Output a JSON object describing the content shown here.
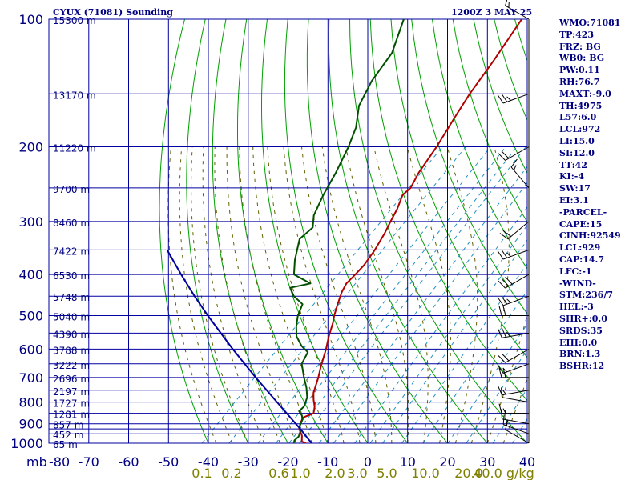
{
  "header": {
    "title": "CYUX (71081) Sounding",
    "valid_time": "1200Z  3 MAY 25"
  },
  "stats": [
    "WMO:71081",
    "TP:423",
    "FRZ: BG",
    "WB0: BG",
    "PW:0.11",
    "RH:76.7",
    "MAXT:-9.0",
    "TH:4975",
    "L57:6.0",
    "LCL:972",
    "LI:15.0",
    "SI:12.0",
    "TT:42",
    "KI:-4",
    "SW:17",
    "EI:3.1",
    "-PARCEL-",
    "CAPE:15",
    "CINH:92549",
    "LCL:929",
    "CAP:14.7",
    "LFC:-1",
    "-WIND-",
    "STM:236/7",
    "HEL:-3",
    "SHR+:0.0",
    "SRDS:35",
    "EHI:0.0",
    "BRN:1.3",
    "BSHR:12"
  ],
  "colors": {
    "grid": "#0000a0",
    "dry_adiabats": "#00a000",
    "moist_adiabats": "#606000",
    "mixing_ratio": "#2090c0",
    "temperature": "#b00000",
    "dewpoint": "#005000",
    "parcel": "#0000a0",
    "axis_text": "#000080",
    "mixing_text": "#808000"
  },
  "chart_data": {
    "type": "line",
    "chart_kind": "skew-T log-P sounding",
    "y_scale": "log",
    "xlim": [
      -80,
      40
    ],
    "ylim": [
      1000,
      100
    ],
    "x_unit_label": "mb",
    "x_ticks": [
      -80,
      -70,
      -60,
      -50,
      -40,
      -30,
      -20,
      -10,
      0,
      10,
      20,
      30,
      40
    ],
    "x_tick_labels": [
      "-80",
      "-70",
      "-60",
      "-50",
      "-40",
      "-30",
      "-20",
      "-10",
      "0",
      "10",
      "20",
      "30",
      "40"
    ],
    "y_ticks": [
      {
        "p": 100,
        "label": "100"
      },
      {
        "p": 200,
        "label": "200"
      },
      {
        "p": 300,
        "label": "300"
      },
      {
        "p": 400,
        "label": "400"
      },
      {
        "p": 500,
        "label": "500"
      },
      {
        "p": 600,
        "label": "600"
      },
      {
        "p": 700,
        "label": "700"
      },
      {
        "p": 800,
        "label": "800"
      },
      {
        "p": 900,
        "label": "900"
      },
      {
        "p": 1000,
        "label": "1000"
      }
    ],
    "pressure_grid": [
      100,
      150,
      200,
      250,
      300,
      350,
      400,
      450,
      500,
      550,
      600,
      650,
      700,
      750,
      800,
      850,
      900,
      925,
      950,
      1000
    ],
    "height_labels": [
      {
        "p": 100,
        "label": "15300 m"
      },
      {
        "p": 150,
        "label": "13170 m"
      },
      {
        "p": 200,
        "label": "11220 m"
      },
      {
        "p": 250,
        "label": "9700 m"
      },
      {
        "p": 300,
        "label": "8460 m"
      },
      {
        "p": 350,
        "label": "7422 m"
      },
      {
        "p": 400,
        "label": "6530 m"
      },
      {
        "p": 450,
        "label": "5748 m"
      },
      {
        "p": 500,
        "label": "5040 m"
      },
      {
        "p": 550,
        "label": "4390 m"
      },
      {
        "p": 600,
        "label": "3788 m"
      },
      {
        "p": 650,
        "label": "3222 m"
      },
      {
        "p": 700,
        "label": "2696 m"
      },
      {
        "p": 750,
        "label": "2197 m"
      },
      {
        "p": 800,
        "label": "1727 m"
      },
      {
        "p": 850,
        "label": "1281 m"
      },
      {
        "p": 900,
        "label": "857 m"
      },
      {
        "p": 950,
        "label": "452 m"
      },
      {
        "p": 1000,
        "label": "65 m"
      }
    ],
    "mixing_ratio_labels": [
      "0.1",
      "0.2",
      "0.6",
      "1.0",
      "2.0",
      "3.0",
      "5.0",
      "10.0",
      "20.0",
      "40.0 g/kg"
    ],
    "mixing_ratio_values": [
      0.1,
      0.2,
      0.6,
      1.0,
      2.0,
      3.0,
      5.0,
      10.0,
      20.0,
      40.0
    ],
    "series": [
      {
        "key": "temperature",
        "points": [
          {
            "p": 1002,
            "t": -15.3
          },
          {
            "p": 990,
            "t": -17.0
          },
          {
            "p": 960,
            "t": -18.4
          },
          {
            "p": 925,
            "t": -20.8
          },
          {
            "p": 900,
            "t": -21.8
          },
          {
            "p": 870,
            "t": -22.7
          },
          {
            "p": 850,
            "t": -21.1
          },
          {
            "p": 820,
            "t": -22.5
          },
          {
            "p": 790,
            "t": -24.5
          },
          {
            "p": 760,
            "t": -26.3
          },
          {
            "p": 700,
            "t": -28.9
          },
          {
            "p": 660,
            "t": -31.0
          },
          {
            "p": 600,
            "t": -34.1
          },
          {
            "p": 560,
            "t": -36.6
          },
          {
            "p": 520,
            "t": -39.0
          },
          {
            "p": 500,
            "t": -40.5
          },
          {
            "p": 470,
            "t": -42.5
          },
          {
            "p": 440,
            "t": -44.5
          },
          {
            "p": 420,
            "t": -45.5
          },
          {
            "p": 400,
            "t": -45.5
          },
          {
            "p": 380,
            "t": -45.7
          },
          {
            "p": 350,
            "t": -46.8
          },
          {
            "p": 320,
            "t": -48.5
          },
          {
            "p": 300,
            "t": -50.0
          },
          {
            "p": 280,
            "t": -51.5
          },
          {
            "p": 260,
            "t": -53.6
          },
          {
            "p": 250,
            "t": -53.4
          },
          {
            "p": 230,
            "t": -55.2
          },
          {
            "p": 200,
            "t": -57.2
          },
          {
            "p": 170,
            "t": -60.1
          },
          {
            "p": 150,
            "t": -62.2
          },
          {
            "p": 125,
            "t": -64.6
          },
          {
            "p": 100,
            "t": -67.9
          }
        ]
      },
      {
        "key": "dewpoint",
        "points": [
          {
            "p": 1002,
            "t": -18.5
          },
          {
            "p": 985,
            "t": -19.1
          },
          {
            "p": 965,
            "t": -19.0
          },
          {
            "p": 940,
            "t": -19.8
          },
          {
            "p": 910,
            "t": -21.4
          },
          {
            "p": 880,
            "t": -22.3
          },
          {
            "p": 860,
            "t": -23.5
          },
          {
            "p": 840,
            "t": -25.3
          },
          {
            "p": 820,
            "t": -25.2
          },
          {
            "p": 780,
            "t": -26.7
          },
          {
            "p": 740,
            "t": -29.3
          },
          {
            "p": 700,
            "t": -32.5
          },
          {
            "p": 650,
            "t": -36.5
          },
          {
            "p": 610,
            "t": -37.9
          },
          {
            "p": 590,
            "t": -41.0
          },
          {
            "p": 560,
            "t": -44.7
          },
          {
            "p": 530,
            "t": -47.3
          },
          {
            "p": 500,
            "t": -49.6
          },
          {
            "p": 470,
            "t": -51.3
          },
          {
            "p": 450,
            "t": -55.5
          },
          {
            "p": 430,
            "t": -58.5
          },
          {
            "p": 420,
            "t": -54.5
          },
          {
            "p": 400,
            "t": -60.9
          },
          {
            "p": 370,
            "t": -64.3
          },
          {
            "p": 330,
            "t": -68.4
          },
          {
            "p": 310,
            "t": -68.0
          },
          {
            "p": 290,
            "t": -70.8
          },
          {
            "p": 260,
            "t": -73.5
          },
          {
            "p": 230,
            "t": -76.0
          },
          {
            "p": 200,
            "t": -79.3
          },
          {
            "p": 180,
            "t": -82.3
          },
          {
            "p": 160,
            "t": -87.0
          },
          {
            "p": 140,
            "t": -90.0
          },
          {
            "p": 120,
            "t": -92.0
          },
          {
            "p": 100,
            "t": -97.5
          }
        ]
      },
      {
        "key": "parcel",
        "points": [
          {
            "p": 1002,
            "t": -13.9
          },
          {
            "p": 929,
            "t": -20.2
          },
          {
            "p": 800,
            "t": -33.1
          },
          {
            "p": 700,
            "t": -44.6
          },
          {
            "p": 600,
            "t": -57.5
          },
          {
            "p": 500,
            "t": -72.2
          },
          {
            "p": 450,
            "t": -80.4
          },
          {
            "p": 400,
            "t": -89.2
          },
          {
            "p": 350,
            "t": -98.9
          }
        ]
      }
    ],
    "wind_barbs": [
      {
        "p": 1000,
        "dir": 300,
        "spd": 10
      },
      {
        "p": 950,
        "dir": 290,
        "spd": 15
      },
      {
        "p": 900,
        "dir": 280,
        "spd": 20
      },
      {
        "p": 850,
        "dir": 270,
        "spd": 15
      },
      {
        "p": 800,
        "dir": 280,
        "spd": 10
      },
      {
        "p": 750,
        "dir": 260,
        "spd": 15
      },
      {
        "p": 700,
        "dir": 270,
        "spd": 20
      },
      {
        "p": 650,
        "dir": 250,
        "spd": 15
      },
      {
        "p": 600,
        "dir": 240,
        "spd": 20
      },
      {
        "p": 550,
        "dir": 260,
        "spd": 25
      },
      {
        "p": 500,
        "dir": 270,
        "spd": 20
      },
      {
        "p": 450,
        "dir": 250,
        "spd": 25
      },
      {
        "p": 400,
        "dir": 240,
        "spd": 30
      },
      {
        "p": 350,
        "dir": 250,
        "spd": 25
      },
      {
        "p": 300,
        "dir": 230,
        "spd": 20
      },
      {
        "p": 250,
        "dir": 320,
        "spd": 15
      },
      {
        "p": 200,
        "dir": 240,
        "spd": 20
      },
      {
        "p": 150,
        "dir": 250,
        "spd": 25
      },
      {
        "p": 100,
        "dir": 300,
        "spd": 15
      }
    ]
  }
}
